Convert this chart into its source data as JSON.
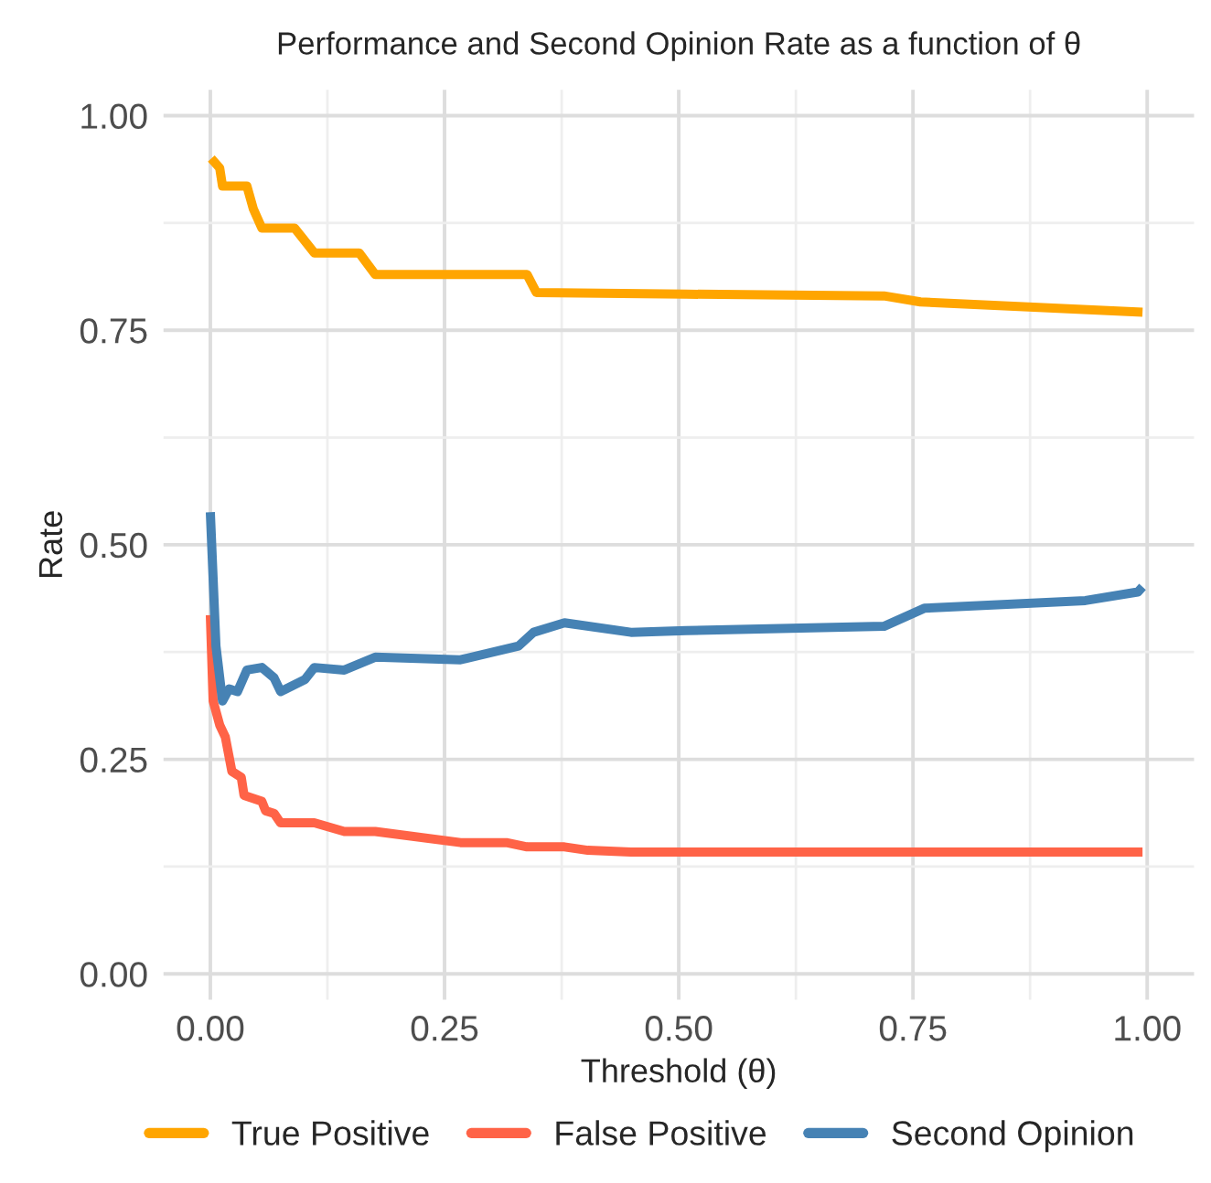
{
  "chart_data": {
    "type": "line",
    "title": "Performance and Second Opinion Rate as a function of θ",
    "xlabel": "Threshold (θ)",
    "ylabel": "Rate",
    "xlim": [
      -0.05,
      1.05
    ],
    "xticks": [
      {
        "value": 0,
        "label": "0.00"
      },
      {
        "value": 0.25,
        "label": "0.25"
      },
      {
        "value": 0.5,
        "label": "0.50"
      },
      {
        "value": 0.75,
        "label": "0.75"
      },
      {
        "value": 1,
        "label": "1.00"
      }
    ],
    "ylim": [
      -0.03,
      1.03
    ],
    "yticks": [
      {
        "value": 0,
        "label": "0.00"
      },
      {
        "value": 0.25,
        "label": "0.25"
      },
      {
        "value": 0.5,
        "label": "0.50"
      },
      {
        "value": 0.75,
        "label": "0.75"
      },
      {
        "value": 1,
        "label": "1.00"
      }
    ],
    "grid": true,
    "legend": "bottom",
    "marker": "none",
    "line_style": "solid",
    "series": [
      {
        "name": "True Positive",
        "color": "#ffa500",
        "x": [
          0.001,
          0.01,
          0.013,
          0.039,
          0.046,
          0.055,
          0.09,
          0.111,
          0.159,
          0.176,
          0.338,
          0.348,
          0.508,
          0.719,
          0.758,
          0.995
        ],
        "values": [
          0.95,
          0.939,
          0.918,
          0.918,
          0.891,
          0.869,
          0.869,
          0.84,
          0.84,
          0.815,
          0.815,
          0.794,
          0.792,
          0.79,
          0.783,
          0.771
        ]
      },
      {
        "name": "False Positive",
        "color": "#ff6347",
        "x": [
          0.0,
          0.003,
          0.01,
          0.016,
          0.023,
          0.033,
          0.036,
          0.055,
          0.059,
          0.068,
          0.075,
          0.111,
          0.143,
          0.176,
          0.267,
          0.316,
          0.338,
          0.378,
          0.403,
          0.449,
          0.995
        ],
        "values": [
          0.418,
          0.318,
          0.29,
          0.276,
          0.236,
          0.229,
          0.208,
          0.201,
          0.19,
          0.187,
          0.176,
          0.176,
          0.166,
          0.166,
          0.153,
          0.153,
          0.148,
          0.148,
          0.144,
          0.142,
          0.142
        ]
      },
      {
        "name": "Second Opinion",
        "color": "#4682b4",
        "x": [
          0.0,
          0.006,
          0.013,
          0.02,
          0.029,
          0.039,
          0.055,
          0.068,
          0.075,
          0.101,
          0.111,
          0.143,
          0.176,
          0.267,
          0.329,
          0.345,
          0.378,
          0.449,
          0.508,
          0.719,
          0.762,
          0.934,
          0.99,
          0.995
        ],
        "values": [
          0.538,
          0.382,
          0.318,
          0.332,
          0.329,
          0.354,
          0.357,
          0.345,
          0.329,
          0.343,
          0.357,
          0.354,
          0.369,
          0.366,
          0.382,
          0.398,
          0.409,
          0.398,
          0.4,
          0.405,
          0.426,
          0.435,
          0.445,
          0.451
        ]
      }
    ]
  }
}
